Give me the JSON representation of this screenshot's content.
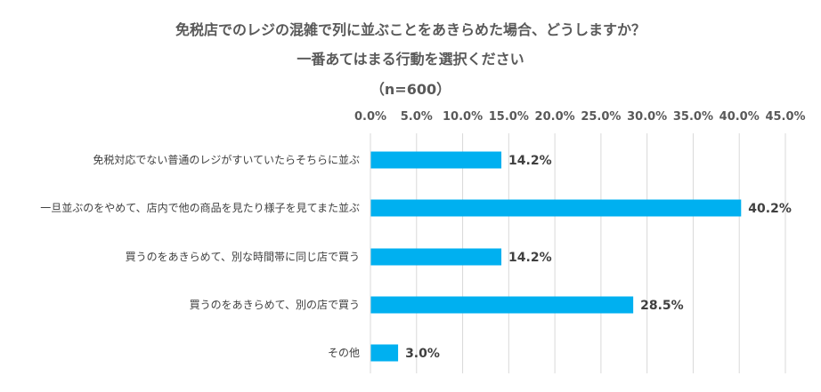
{
  "title_lines": [
    "免税店でのレジの混雑で列に並ぶことをあきらめた場合、どうしますか？",
    "一番あてはまる行動を選択ください",
    "（n=600）"
  ],
  "chart_data": {
    "type": "bar",
    "orientation": "horizontal",
    "title": "免税店でのレジの混雑で列に並ぶことをあきらめた場合、どうしますか？ 一番あてはまる行動を選択ください （n=600）",
    "categories": [
      "免税対応でない普通のレジがすいていたらそちらに並ぶ",
      "一旦並ぶのをやめて、店内で他の商品を見たり様子を見てまた並ぶ",
      "買うのをあきらめて、別な時間帯に同じ店で買う",
      "買うのをあきらめて、別の店で買う",
      "その他"
    ],
    "values": [
      14.2,
      40.2,
      14.2,
      28.5,
      3.0
    ],
    "value_labels": [
      "14.2%",
      "40.2%",
      "14.2%",
      "28.5%",
      "3.0%"
    ],
    "xlim": [
      0,
      45
    ],
    "x_ticks": [
      "0.0%",
      "5.0%",
      "10.0%",
      "15.0%",
      "20.0%",
      "25.0%",
      "30.0%",
      "35.0%",
      "40.0%",
      "45.0%"
    ],
    "tick_values": [
      0,
      5,
      10,
      15,
      20,
      25,
      30,
      35,
      40,
      45
    ],
    "axis_position": "top",
    "grid": true,
    "bar_color": "#00B0F0",
    "grid_color": "#D9D9D9"
  }
}
